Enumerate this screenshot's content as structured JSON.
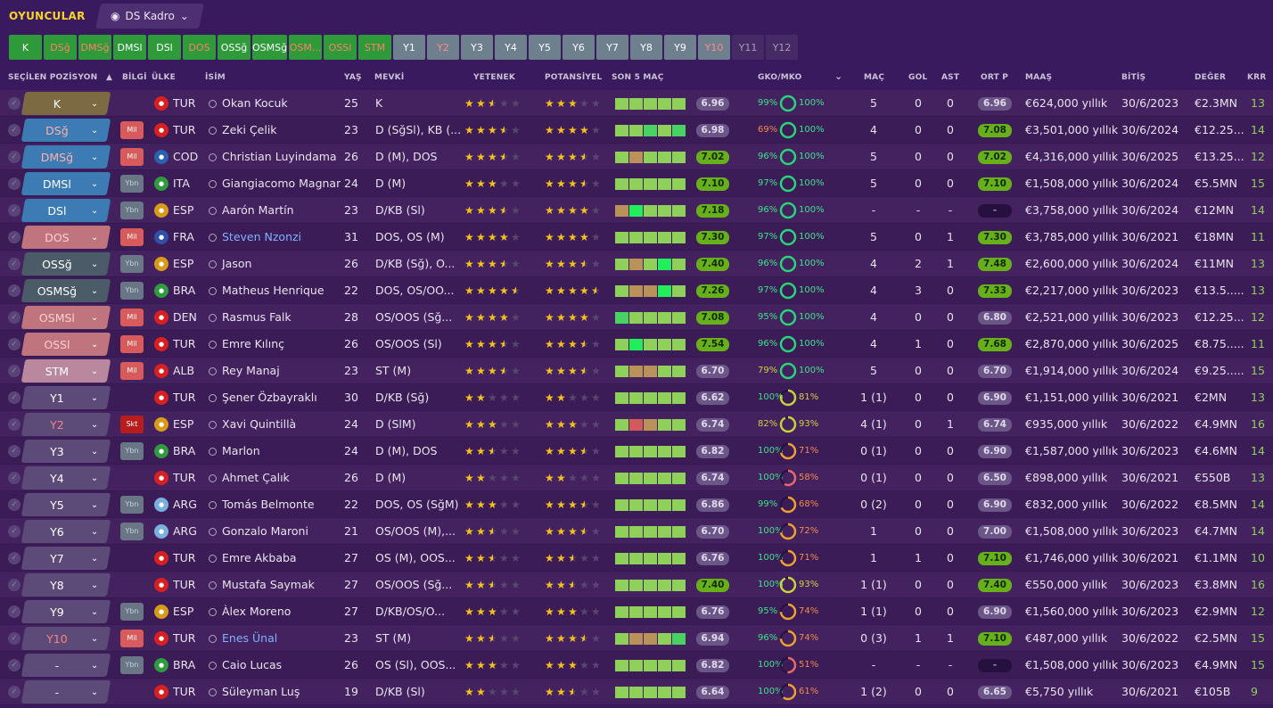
{
  "app": {
    "section": "OYUNCULAR",
    "view_label": "DS Kadro"
  },
  "positions": [
    {
      "label": "K",
      "style": "g"
    },
    {
      "label": "DSğ",
      "style": "gr"
    },
    {
      "label": "DMSğ",
      "style": "gr"
    },
    {
      "label": "DMSl",
      "style": "g"
    },
    {
      "label": "DSl",
      "style": "g"
    },
    {
      "label": "DOS",
      "style": "gr"
    },
    {
      "label": "OSSğ",
      "style": "g"
    },
    {
      "label": "OSMSğ",
      "style": "g"
    },
    {
      "label": "OSM...",
      "style": "gr"
    },
    {
      "label": "OSSl",
      "style": "gr"
    },
    {
      "label": "STM",
      "style": "gr"
    },
    {
      "label": "Y1",
      "style": "s"
    },
    {
      "label": "Y2",
      "style": "sr"
    },
    {
      "label": "Y3",
      "style": "s"
    },
    {
      "label": "Y4",
      "style": "s"
    },
    {
      "label": "Y5",
      "style": "s"
    },
    {
      "label": "Y6",
      "style": "s"
    },
    {
      "label": "Y7",
      "style": "s"
    },
    {
      "label": "Y8",
      "style": "s"
    },
    {
      "label": "Y9",
      "style": "s"
    },
    {
      "label": "Y10",
      "style": "sr"
    },
    {
      "label": "Y11",
      "style": "d"
    },
    {
      "label": "Y12",
      "style": "d"
    }
  ],
  "columns": {
    "position": "SEÇİLEN POZİSYON",
    "info": "BİLGİ",
    "nation": "ÜLKE",
    "name": "İSİM",
    "age": "YAŞ",
    "role": "MEVKİ",
    "ability": "YETENEK",
    "potential": "POTANSİYEL",
    "form": "SON 5 MAÇ",
    "gko": "GKO/MKO",
    "apps": "MAÇ",
    "goals": "GOL",
    "assists": "AST",
    "avg": "ORT P",
    "wage": "MAAŞ",
    "expiry": "BİTİŞ",
    "value": "DEĞER",
    "kkr": "KRR"
  },
  "colors": {
    "bg": "#3a1a5e",
    "accent": "#f5d328",
    "rating_green": "#68b01a",
    "condition_green": "#2bd37a",
    "condition_orange": "#f0a030"
  },
  "players": [
    {
      "pos": "K",
      "pc": "rk",
      "badge": "",
      "bc": "",
      "flag": "#d82020",
      "nat": "TUR",
      "name": "Okan Kocuk",
      "link": false,
      "age": "25",
      "role": "K",
      "ab": 2.5,
      "pot": 3,
      "form": [
        "lime",
        "lime",
        "lime",
        "lime",
        "lime"
      ],
      "rating": "6.96",
      "gk": "99%",
      "gkv": 0.99,
      "mk": "100%",
      "mkv": 1.0,
      "apps": "5",
      "goals": "0",
      "ast": "0",
      "avg": "6.96",
      "avgc": "p",
      "wage": "€624,000 yıllık",
      "exp": "30/6/2023",
      "val": "€2.3MN",
      "kkr": "13"
    },
    {
      "pos": "DSğ",
      "pc": "rds",
      "badge": "Mil",
      "bc": "mil",
      "flag": "#d82020",
      "nat": "TUR",
      "name": "Zeki Çelik",
      "link": false,
      "age": "23",
      "role": "D (SğSl), KB (...",
      "ab": 3.5,
      "pot": 4,
      "form": [
        "lime",
        "lime",
        "grn",
        "lime",
        "grn"
      ],
      "rating": "6.98",
      "gk": "69%",
      "gkv": 0.69,
      "mk": "100%",
      "mkv": 1.0,
      "apps": "4",
      "goals": "0",
      "ast": "0",
      "avg": "7.08",
      "avgc": "g",
      "wage": "€3,501,000 yıllık",
      "exp": "30/6/2024",
      "val": "€12.25...",
      "kkr": "14"
    },
    {
      "pos": "DMSğ",
      "pc": "rds",
      "badge": "Mil",
      "bc": "mil",
      "flag": "#2a62b0",
      "nat": "COD",
      "name": "Christian Luyindama",
      "link": false,
      "age": "26",
      "role": "D (M), DOS",
      "ab": 3.5,
      "pot": 3.5,
      "form": [
        "lime",
        "brn",
        "lime",
        "lime",
        "lime"
      ],
      "rating": "7.02",
      "gk": "96%",
      "gkv": 0.96,
      "mk": "100%",
      "mkv": 1.0,
      "apps": "5",
      "goals": "0",
      "ast": "0",
      "avg": "7.02",
      "avgc": "g",
      "wage": "€4,316,000 yıllık",
      "exp": "30/6/2025",
      "val": "€13.25...",
      "kkr": "12"
    },
    {
      "pos": "DMSl",
      "pc": "rd",
      "badge": "Ybn",
      "bc": "ybn",
      "flag": "#2f9a3f",
      "nat": "ITA",
      "name": "Giangiacomo Magnani",
      "link": false,
      "age": "24",
      "role": "D (M)",
      "ab": 3,
      "pot": 3.5,
      "form": [
        "lime",
        "lime",
        "lime",
        "lime",
        "lime"
      ],
      "rating": "7.10",
      "gk": "97%",
      "gkv": 0.97,
      "mk": "100%",
      "mkv": 1.0,
      "apps": "5",
      "goals": "0",
      "ast": "0",
      "avg": "7.10",
      "avgc": "g",
      "wage": "€1,508,000 yıllık",
      "exp": "30/6/2024",
      "val": "€5.5MN",
      "kkr": "15"
    },
    {
      "pos": "DSl",
      "pc": "rd",
      "badge": "Ybn",
      "bc": "ybn",
      "flag": "#d89b18",
      "nat": "ESP",
      "name": "Aarón Martín",
      "link": false,
      "age": "23",
      "role": "D/KB (Sl)",
      "ab": 3.5,
      "pot": 4,
      "form": [
        "brn",
        "brt",
        "lime",
        "lime",
        "lime"
      ],
      "rating": "7.18",
      "gk": "96%",
      "gkv": 0.96,
      "mk": "100%",
      "mkv": 1.0,
      "apps": "-",
      "goals": "-",
      "ast": "-",
      "avg": "-",
      "avgc": "d",
      "wage": "€3,758,000 yıllık",
      "exp": "30/6/2024",
      "val": "€12MN",
      "kkr": "14"
    },
    {
      "pos": "DOS",
      "pc": "rmr",
      "badge": "Mil",
      "bc": "mil",
      "flag": "#3050a8",
      "nat": "FRA",
      "name": "Steven Nzonzi",
      "link": true,
      "age": "31",
      "role": "DOS, OS (M)",
      "ab": 4,
      "pot": 4,
      "form": [
        "lime",
        "lime",
        "lime",
        "lime",
        "lime"
      ],
      "rating": "7.30",
      "gk": "97%",
      "gkv": 0.97,
      "mk": "100%",
      "mkv": 1.0,
      "apps": "5",
      "goals": "0",
      "ast": "1",
      "avg": "7.30",
      "avgc": "g",
      "wage": "€3,785,000 yıllık",
      "exp": "30/6/2021",
      "val": "€18MN",
      "kkr": "11"
    },
    {
      "pos": "OSSğ",
      "pc": "rm",
      "badge": "Ybn",
      "bc": "ybn",
      "flag": "#d89b18",
      "nat": "ESP",
      "name": "Jason",
      "link": false,
      "age": "26",
      "role": "D/KB (Sğ), O...",
      "ab": 3.5,
      "pot": 3.5,
      "form": [
        "lime",
        "brn",
        "lime",
        "brt",
        "lime"
      ],
      "rating": "7.40",
      "gk": "96%",
      "gkv": 0.96,
      "mk": "100%",
      "mkv": 1.0,
      "apps": "4",
      "goals": "2",
      "ast": "1",
      "avg": "7.48",
      "avgc": "g",
      "wage": "€2,600,000 yıllık",
      "exp": "30/6/2024",
      "val": "€11MN",
      "kkr": "13"
    },
    {
      "pos": "OSMSğ",
      "pc": "rm",
      "badge": "Ybn",
      "bc": "ybn",
      "flag": "#2f9a3f",
      "nat": "BRA",
      "name": "Matheus Henrique",
      "link": false,
      "age": "22",
      "role": "DOS, OS/OO...",
      "ab": 4.5,
      "pot": 4.5,
      "form": [
        "lime",
        "brn",
        "brn",
        "brt",
        "lime"
      ],
      "rating": "7.26",
      "gk": "97%",
      "gkv": 0.97,
      "mk": "100%",
      "mkv": 1.0,
      "apps": "4",
      "goals": "3",
      "ast": "0",
      "avg": "7.33",
      "avgc": "g",
      "wage": "€2,217,000 yıllık",
      "exp": "30/6/2023",
      "val": "€13.5......",
      "kkr": "13"
    },
    {
      "pos": "OSMSl",
      "pc": "rmr",
      "badge": "Mil",
      "bc": "mil",
      "flag": "#d82020",
      "nat": "DEN",
      "name": "Rasmus Falk",
      "link": false,
      "age": "28",
      "role": "OS/OOS (Sğ...",
      "ab": 4,
      "pot": 4,
      "form": [
        "grn",
        "lime",
        "lime",
        "lime",
        "lime"
      ],
      "rating": "7.08",
      "gk": "95%",
      "gkv": 0.95,
      "mk": "100%",
      "mkv": 1.0,
      "apps": "4",
      "goals": "0",
      "ast": "0",
      "avg": "6.80",
      "avgc": "p",
      "wage": "€2,521,000 yıllık",
      "exp": "30/6/2023",
      "val": "€12.25...",
      "kkr": "12"
    },
    {
      "pos": "OSSl",
      "pc": "rmr",
      "badge": "Mil",
      "bc": "mil",
      "flag": "#d82020",
      "nat": "TUR",
      "name": "Emre Kılınç",
      "link": false,
      "age": "26",
      "role": "OS/OOS (Sl)",
      "ab": 3.5,
      "pot": 3.5,
      "form": [
        "lime",
        "brt",
        "lime",
        "lime",
        "lime"
      ],
      "rating": "7.54",
      "gk": "96%",
      "gkv": 0.96,
      "mk": "100%",
      "mkv": 1.0,
      "apps": "4",
      "goals": "1",
      "ast": "0",
      "avg": "7.68",
      "avgc": "g",
      "wage": "€2,870,000 yıllık",
      "exp": "30/6/2025",
      "val": "€8.75......",
      "kkr": "11"
    },
    {
      "pos": "STM",
      "pc": "rstm",
      "badge": "Mil",
      "bc": "mil",
      "flag": "#d82020",
      "nat": "ALB",
      "name": "Rey Manaj",
      "link": false,
      "age": "23",
      "role": "ST (M)",
      "ab": 3.5,
      "pot": 3.5,
      "form": [
        "lime",
        "brn",
        "brn",
        "lime",
        "lime"
      ],
      "rating": "6.70",
      "gk": "79%",
      "gkv": 0.79,
      "mk": "100%",
      "mkv": 1.0,
      "apps": "5",
      "goals": "0",
      "ast": "0",
      "avg": "6.70",
      "avgc": "p",
      "wage": "€1,914,000 yıllık",
      "exp": "30/6/2024",
      "val": "€9.25......",
      "kkr": "15"
    },
    {
      "pos": "Y1",
      "pc": "rs",
      "badge": "",
      "bc": "",
      "flag": "#d82020",
      "nat": "TUR",
      "name": "Şener Özbayraklı",
      "link": false,
      "age": "30",
      "role": "D/KB (Sğ)",
      "ab": 2,
      "pot": 2,
      "form": [
        "lime",
        "lime",
        "lime",
        "lime",
        "lime"
      ],
      "rating": "6.62",
      "gk": "100%",
      "gkv": 1.0,
      "mk": "81%",
      "mkv": 0.81,
      "apps": "1 (1)",
      "goals": "0",
      "ast": "0",
      "avg": "6.90",
      "avgc": "p",
      "wage": "€1,151,000 yıllık",
      "exp": "30/6/2021",
      "val": "€2MN",
      "kkr": "13"
    },
    {
      "pos": "Y2",
      "pc": "rsr",
      "badge": "Skt",
      "bc": "skt",
      "flag": "#d89b18",
      "nat": "ESP",
      "name": "Xavi Quintillà",
      "link": false,
      "age": "24",
      "role": "D (SlM)",
      "ab": 3,
      "pot": 3,
      "form": [
        "lime",
        "red",
        "brn",
        "lime",
        "lime"
      ],
      "rating": "6.74",
      "gk": "82%",
      "gkv": 0.82,
      "mk": "93%",
      "mkv": 0.93,
      "apps": "4 (1)",
      "goals": "0",
      "ast": "1",
      "avg": "6.74",
      "avgc": "p",
      "wage": "€935,000 yıllık",
      "exp": "30/6/2022",
      "val": "€4.9MN",
      "kkr": "16"
    },
    {
      "pos": "Y3",
      "pc": "rs",
      "badge": "Ybn",
      "bc": "ybn",
      "flag": "#2f9a3f",
      "nat": "BRA",
      "name": "Marlon",
      "link": false,
      "age": "24",
      "role": "D (M), DOS",
      "ab": 2.5,
      "pot": 3.5,
      "form": [
        "lime",
        "lime",
        "lime",
        "lime",
        "lime"
      ],
      "rating": "6.82",
      "gk": "100%",
      "gkv": 1.0,
      "mk": "71%",
      "mkv": 0.71,
      "apps": "0 (1)",
      "goals": "0",
      "ast": "0",
      "avg": "6.90",
      "avgc": "p",
      "wage": "€1,587,000 yıllık",
      "exp": "30/6/2023",
      "val": "€4.6MN",
      "kkr": "14"
    },
    {
      "pos": "Y4",
      "pc": "rs",
      "badge": "",
      "bc": "",
      "flag": "#d82020",
      "nat": "TUR",
      "name": "Ahmet Çalık",
      "link": false,
      "age": "26",
      "role": "D (M)",
      "ab": 2,
      "pot": 2,
      "form": [
        "lime",
        "lime",
        "lime",
        "lime",
        "lime"
      ],
      "rating": "6.74",
      "gk": "100%",
      "gkv": 1.0,
      "mk": "58%",
      "mkv": 0.58,
      "apps": "0 (1)",
      "goals": "0",
      "ast": "0",
      "avg": "6.50",
      "avgc": "p",
      "wage": "€898,000 yıllık",
      "exp": "30/6/2021",
      "val": "€550B",
      "kkr": "13"
    },
    {
      "pos": "Y5",
      "pc": "rs",
      "badge": "Ybn",
      "bc": "ybn",
      "flag": "#7ab0e0",
      "nat": "ARG",
      "name": "Tomás Belmonte",
      "link": false,
      "age": "22",
      "role": "DOS, OS (SğM)",
      "ab": 3,
      "pot": 3.5,
      "form": [
        "lime",
        "lime",
        "lime",
        "lime",
        "lime"
      ],
      "rating": "6.86",
      "gk": "99%",
      "gkv": 0.99,
      "mk": "68%",
      "mkv": 0.68,
      "apps": "0 (2)",
      "goals": "0",
      "ast": "0",
      "avg": "6.90",
      "avgc": "p",
      "wage": "€832,000 yıllık",
      "exp": "30/6/2022",
      "val": "€8.5MN",
      "kkr": "14"
    },
    {
      "pos": "Y6",
      "pc": "rs",
      "badge": "Ybn",
      "bc": "ybn",
      "flag": "#7ab0e0",
      "nat": "ARG",
      "name": "Gonzalo Maroni",
      "link": false,
      "age": "21",
      "role": "OS/OOS (M),...",
      "ab": 2.5,
      "pot": 3.5,
      "form": [
        "lime",
        "lime",
        "lime",
        "lime",
        "lime"
      ],
      "rating": "6.70",
      "gk": "100%",
      "gkv": 1.0,
      "mk": "72%",
      "mkv": 0.72,
      "apps": "1",
      "goals": "0",
      "ast": "0",
      "avg": "7.00",
      "avgc": "p",
      "wage": "€1,508,000 yıllık",
      "exp": "30/6/2023",
      "val": "€4.7MN",
      "kkr": "14"
    },
    {
      "pos": "Y7",
      "pc": "rs",
      "badge": "",
      "bc": "",
      "flag": "#d82020",
      "nat": "TUR",
      "name": "Emre Akbaba",
      "link": false,
      "age": "27",
      "role": "OS (M), OOS...",
      "ab": 2.5,
      "pot": 2.5,
      "form": [
        "lime",
        "lime",
        "lime",
        "lime",
        "lime"
      ],
      "rating": "6.76",
      "gk": "100%",
      "gkv": 1.0,
      "mk": "71%",
      "mkv": 0.71,
      "apps": "1",
      "goals": "1",
      "ast": "0",
      "avg": "7.10",
      "avgc": "g",
      "wage": "€1,746,000 yıllık",
      "exp": "30/6/2021",
      "val": "€1.1MN",
      "kkr": "10"
    },
    {
      "pos": "Y8",
      "pc": "rs",
      "badge": "",
      "bc": "",
      "flag": "#d82020",
      "nat": "TUR",
      "name": "Mustafa Saymak",
      "link": false,
      "age": "27",
      "role": "OS/OOS (Sğ...",
      "ab": 2.5,
      "pot": 2.5,
      "form": [
        "lime",
        "lime",
        "lime",
        "lime",
        "lime"
      ],
      "rating": "7.40",
      "gk": "100%",
      "gkv": 1.0,
      "mk": "93%",
      "mkv": 0.93,
      "apps": "1 (1)",
      "goals": "0",
      "ast": "0",
      "avg": "7.40",
      "avgc": "g",
      "wage": "€550,000 yıllık",
      "exp": "30/6/2023",
      "val": "€3.8MN",
      "kkr": "16"
    },
    {
      "pos": "Y9",
      "pc": "rs",
      "badge": "Ybn",
      "bc": "ybn",
      "flag": "#d89b18",
      "nat": "ESP",
      "name": "Àlex Moreno",
      "link": false,
      "age": "27",
      "role": "D/KB/OS/O...",
      "ab": 3,
      "pot": 3,
      "form": [
        "lime",
        "lime",
        "lime",
        "lime",
        "lime"
      ],
      "rating": "6.76",
      "gk": "95%",
      "gkv": 0.95,
      "mk": "74%",
      "mkv": 0.74,
      "apps": "1 (1)",
      "goals": "0",
      "ast": "0",
      "avg": "6.90",
      "avgc": "p",
      "wage": "€1,560,000 yıllık",
      "exp": "30/6/2023",
      "val": "€2.9MN",
      "kkr": "12"
    },
    {
      "pos": "Y10",
      "pc": "rsr",
      "badge": "Mil",
      "bc": "mil",
      "flag": "#d82020",
      "nat": "TUR",
      "name": "Enes Ünal",
      "link": true,
      "age": "23",
      "role": "ST (M)",
      "ab": 2.5,
      "pot": 3.5,
      "form": [
        "lime",
        "brn",
        "brn",
        "lime",
        "grn"
      ],
      "rating": "6.94",
      "gk": "96%",
      "gkv": 0.96,
      "mk": "74%",
      "mkv": 0.74,
      "apps": "0 (3)",
      "goals": "1",
      "ast": "1",
      "avg": "7.10",
      "avgc": "g",
      "wage": "€487,000 yıllık",
      "exp": "30/6/2022",
      "val": "€2.5MN",
      "kkr": "15"
    },
    {
      "pos": "-",
      "pc": "rs",
      "badge": "Ybn",
      "bc": "ybn",
      "flag": "#2f9a3f",
      "nat": "BRA",
      "name": "Caio Lucas",
      "link": false,
      "age": "26",
      "role": "OS (Sl), OOS...",
      "ab": 3,
      "pot": 3,
      "form": [
        "lime",
        "lime",
        "lime",
        "lime",
        "lime"
      ],
      "rating": "6.82",
      "gk": "100%",
      "gkv": 1.0,
      "mk": "51%",
      "mkv": 0.51,
      "apps": "-",
      "goals": "-",
      "ast": "-",
      "avg": "-",
      "avgc": "d",
      "wage": "€1,508,000 yıllık",
      "exp": "30/6/2023",
      "val": "€4.9MN",
      "kkr": "15"
    },
    {
      "pos": "-",
      "pc": "rs",
      "badge": "",
      "bc": "",
      "flag": "#d82020",
      "nat": "TUR",
      "name": "Süleyman Luş",
      "link": false,
      "age": "19",
      "role": "D/KB (Sl)",
      "ab": 2,
      "pot": 2.5,
      "form": [
        "lime",
        "lime",
        "lime",
        "lime",
        "lime"
      ],
      "rating": "6.64",
      "gk": "100%",
      "gkv": 1.0,
      "mk": "61%",
      "mkv": 0.61,
      "apps": "1 (2)",
      "goals": "0",
      "ast": "0",
      "avg": "6.65",
      "avgc": "p",
      "wage": "€5,750 yıllık",
      "exp": "30/6/2021",
      "val": "€105B",
      "kkr": "9"
    }
  ]
}
